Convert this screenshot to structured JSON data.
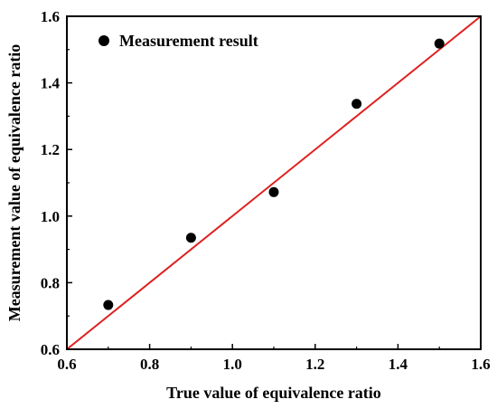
{
  "chart_data": {
    "type": "scatter",
    "title": "",
    "xlabel": "True value of equivalence ratio",
    "ylabel": "Measurement value of equivalence ratio",
    "xlim": [
      0.6,
      1.6
    ],
    "ylim": [
      0.6,
      1.6
    ],
    "xticks": [
      "0.6",
      "0.8",
      "1.0",
      "1.2",
      "1.4",
      "1.6"
    ],
    "yticks": [
      "0.6",
      "0.8",
      "1.0",
      "1.2",
      "1.4",
      "1.6"
    ],
    "grid": false,
    "legend_position": "top-left",
    "series": [
      {
        "name": "Measurement result",
        "marker": "filled-circle",
        "color": "#000000",
        "x": [
          0.7,
          0.9,
          1.1,
          1.3,
          1.5
        ],
        "y": [
          0.733,
          0.935,
          1.072,
          1.337,
          1.518
        ]
      }
    ],
    "reference_line": {
      "type": "y=x",
      "color": "#e02020",
      "x": [
        0.6,
        1.6
      ],
      "y": [
        0.6,
        1.6
      ]
    }
  }
}
